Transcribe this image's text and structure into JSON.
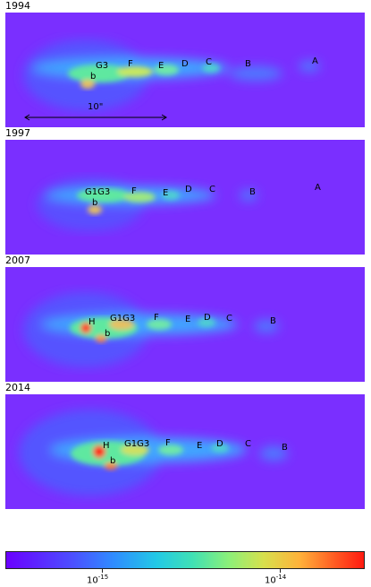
{
  "panels": [
    {
      "year": "1994",
      "labels": [
        "G3",
        "b",
        "F",
        "E",
        "D",
        "C",
        "B",
        "A"
      ]
    },
    {
      "year": "1997",
      "labels": [
        "G1G3",
        "b",
        "F",
        "E",
        "D",
        "C",
        "B",
        "A"
      ]
    },
    {
      "year": "2007",
      "labels": [
        "H",
        "G1G3",
        "b",
        "F",
        "E",
        "D",
        "C",
        "B"
      ]
    },
    {
      "year": "2014",
      "labels": [
        "H",
        "G1G3",
        "b",
        "F",
        "E",
        "D",
        "C",
        "B"
      ]
    }
  ],
  "scale_bar": {
    "label": "10\""
  },
  "colorbar": {
    "tick_1": {
      "base": "10",
      "exp": "-15"
    },
    "tick_2": {
      "base": "10",
      "exp": "-14"
    }
  },
  "colors": {
    "background": "#7a2fff",
    "low": "#2f8cff",
    "mid": "#3fe0b5",
    "high": "#ffb23a",
    "peak": "#ff1a10"
  }
}
